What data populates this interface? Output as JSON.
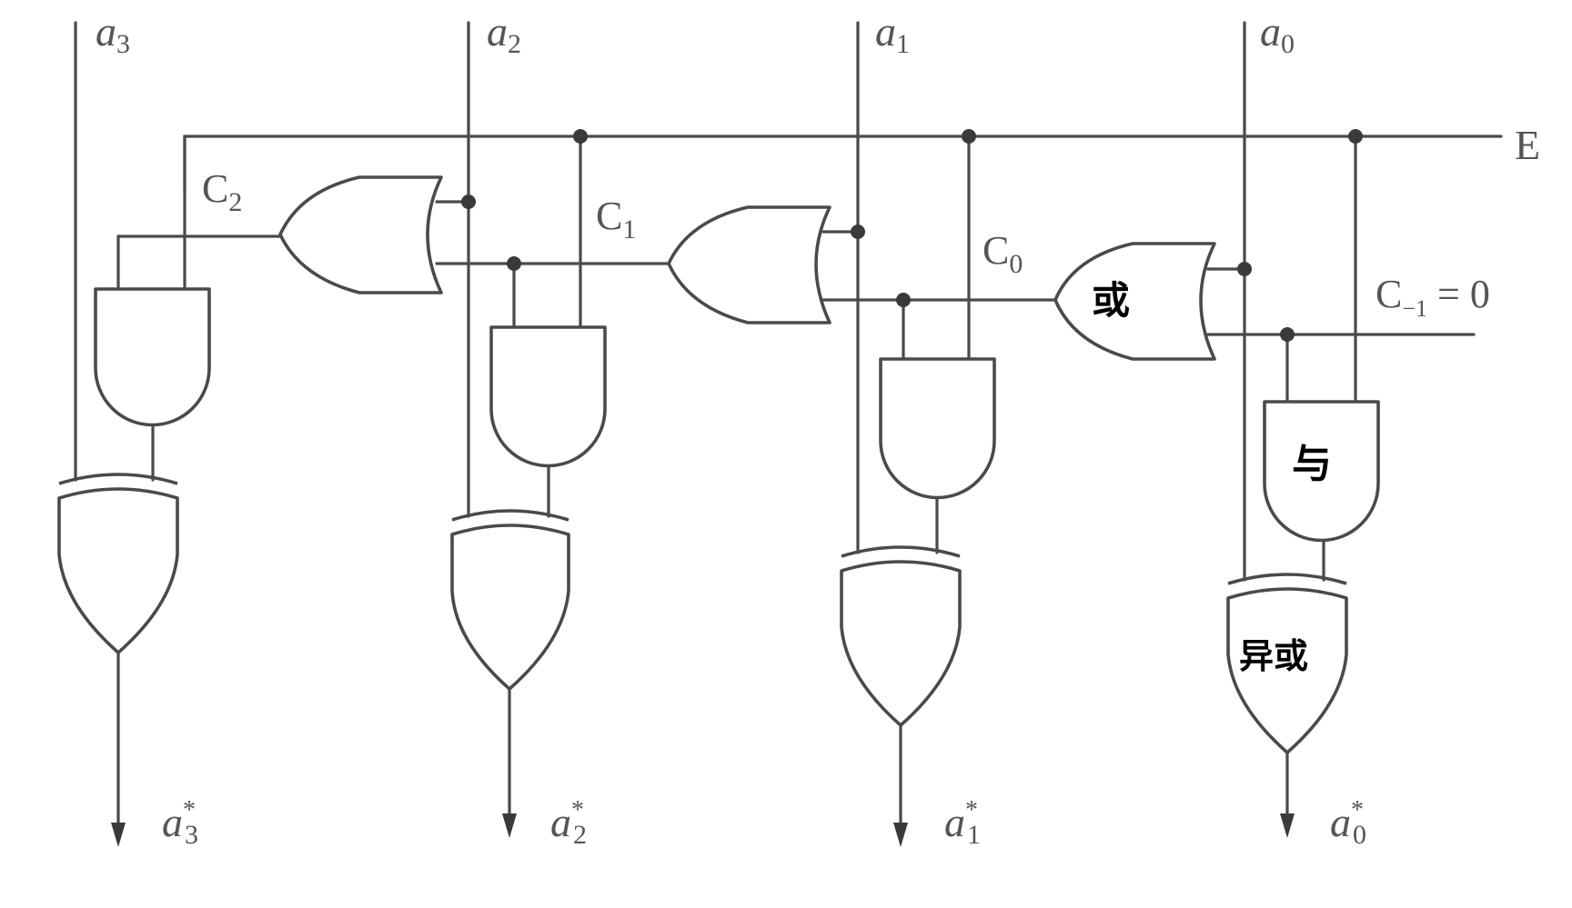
{
  "inputs": {
    "a3": {
      "base": "a",
      "sub": "3"
    },
    "a2": {
      "base": "a",
      "sub": "2"
    },
    "a1": {
      "base": "a",
      "sub": "1"
    },
    "a0": {
      "base": "a",
      "sub": "0"
    }
  },
  "outputs": {
    "a3": {
      "base": "a",
      "sub": "3",
      "sup": "*"
    },
    "a2": {
      "base": "a",
      "sub": "2",
      "sup": "*"
    },
    "a1": {
      "base": "a",
      "sub": "1",
      "sup": "*"
    },
    "a0": {
      "base": "a",
      "sub": "0",
      "sup": "*"
    }
  },
  "carries": {
    "c2": {
      "base": "C",
      "sub": "2"
    },
    "c1": {
      "base": "C",
      "sub": "1"
    },
    "c0": {
      "base": "C",
      "sub": "0"
    },
    "cm1": {
      "base": "C",
      "sub": "−1",
      "rest": " = 0"
    }
  },
  "enable": {
    "label": "E"
  },
  "handwritten": {
    "or": "或",
    "and": "与",
    "xor": "异或"
  }
}
